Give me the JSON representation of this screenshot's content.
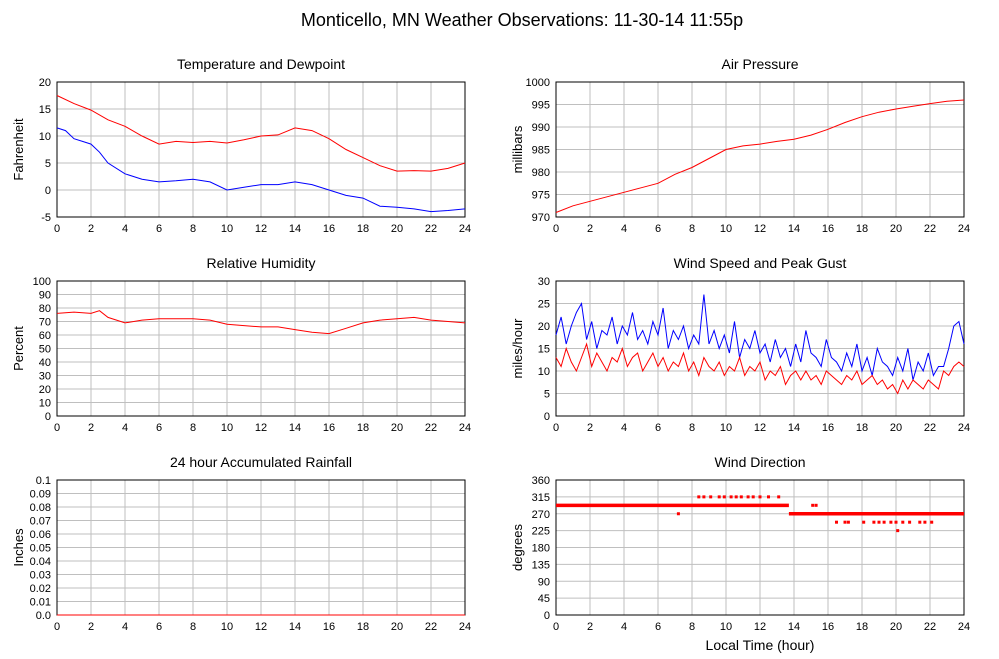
{
  "page": {
    "title": "Monticello, MN Weather Observations: 11-30-14 11:55p",
    "xlabel": "Local Time (hour)"
  },
  "colors": {
    "red": "#ff0000",
    "blue": "#0000ff",
    "grid": "#bfbfbf",
    "axis": "#000000"
  },
  "chart_data": [
    {
      "id": "temp",
      "type": "line",
      "title": "Temperature and Dewpoint",
      "xlabel": "",
      "ylabel": "Fahrenheit",
      "xlim": [
        0,
        24
      ],
      "ylim": [
        -5,
        20
      ],
      "xticks": [
        "0",
        "2",
        "4",
        "6",
        "8",
        "10",
        "12",
        "14",
        "16",
        "18",
        "20",
        "22",
        "24"
      ],
      "yticks": [
        "-5",
        "0",
        "5",
        "10",
        "15",
        "20"
      ],
      "grid": true,
      "series": [
        {
          "color": "red",
          "x": [
            0,
            1,
            2,
            3,
            4,
            5,
            6,
            7,
            8,
            9,
            10,
            11,
            12,
            13,
            14,
            15,
            16,
            17,
            18,
            19,
            20,
            21,
            22,
            23,
            24
          ],
          "values": [
            17.5,
            16,
            14.8,
            13,
            11.8,
            10,
            8.5,
            9,
            8.8,
            9,
            8.7,
            9.3,
            10,
            10.2,
            11.5,
            11,
            9.5,
            7.5,
            6,
            4.5,
            3.5,
            3.6,
            3.5,
            4,
            5
          ]
        },
        {
          "color": "blue",
          "x": [
            0,
            0.5,
            1,
            1.5,
            2,
            2.5,
            3,
            4,
            5,
            6,
            7,
            8,
            9,
            10,
            11,
            12,
            13,
            14,
            15,
            16,
            17,
            18,
            19,
            20,
            21,
            22,
            23,
            24
          ],
          "values": [
            11.5,
            11,
            9.5,
            9,
            8.5,
            7,
            5,
            3,
            2,
            1.5,
            1.7,
            2,
            1.5,
            0,
            0.5,
            1,
            1,
            1.5,
            1,
            0,
            -1,
            -1.5,
            -3,
            -3.2,
            -3.5,
            -4,
            -3.8,
            -3.5
          ]
        }
      ]
    },
    {
      "id": "pressure",
      "type": "line",
      "title": "Air Pressure",
      "xlabel": "",
      "ylabel": "millibars",
      "xlim": [
        0,
        24
      ],
      "ylim": [
        970,
        1000
      ],
      "xticks": [
        "0",
        "2",
        "4",
        "6",
        "8",
        "10",
        "12",
        "14",
        "16",
        "18",
        "20",
        "22",
        "24"
      ],
      "yticks": [
        "970",
        "975",
        "980",
        "985",
        "990",
        "995",
        "1000"
      ],
      "grid": true,
      "series": [
        {
          "color": "red",
          "x": [
            0,
            1,
            2,
            3,
            4,
            5,
            6,
            7,
            8,
            9,
            10,
            11,
            12,
            13,
            14,
            15,
            16,
            17,
            18,
            19,
            20,
            21,
            22,
            23,
            24
          ],
          "values": [
            971,
            972.5,
            973.5,
            974.5,
            975.5,
            976.5,
            977.5,
            979.5,
            981,
            983,
            985,
            985.8,
            986.2,
            986.8,
            987.3,
            988.2,
            989.5,
            991,
            992.3,
            993.3,
            994,
            994.6,
            995.2,
            995.7,
            996
          ]
        }
      ]
    },
    {
      "id": "humidity",
      "type": "line",
      "title": "Relative Humidity",
      "xlabel": "",
      "ylabel": "Percent",
      "xlim": [
        0,
        24
      ],
      "ylim": [
        0,
        100
      ],
      "xticks": [
        "0",
        "2",
        "4",
        "6",
        "8",
        "10",
        "12",
        "14",
        "16",
        "18",
        "20",
        "22",
        "24"
      ],
      "yticks": [
        "0",
        "10",
        "20",
        "30",
        "40",
        "50",
        "60",
        "70",
        "80",
        "90",
        "100"
      ],
      "grid": true,
      "series": [
        {
          "color": "red",
          "x": [
            0,
            1,
            2,
            2.5,
            3,
            4,
            5,
            6,
            7,
            8,
            9,
            10,
            11,
            12,
            13,
            14,
            15,
            16,
            17,
            18,
            19,
            20,
            21,
            22,
            23,
            24
          ],
          "values": [
            76,
            77,
            76,
            78,
            73,
            69,
            71,
            72,
            72,
            72,
            71,
            68,
            67,
            66,
            66,
            64,
            62,
            61,
            65,
            69,
            71,
            72,
            73,
            71,
            70,
            69
          ]
        }
      ]
    },
    {
      "id": "wind",
      "type": "line",
      "title": "Wind Speed and Peak Gust",
      "xlabel": "",
      "ylabel": "miles/hour",
      "xlim": [
        0,
        24
      ],
      "ylim": [
        0,
        30
      ],
      "xticks": [
        "0",
        "2",
        "4",
        "6",
        "8",
        "10",
        "12",
        "14",
        "16",
        "18",
        "20",
        "22",
        "24"
      ],
      "yticks": [
        "0",
        "5",
        "10",
        "15",
        "20",
        "25",
        "30"
      ],
      "grid": true,
      "series": [
        {
          "color": "blue",
          "x": [
            0,
            0.3,
            0.6,
            0.9,
            1.2,
            1.5,
            1.8,
            2.1,
            2.4,
            2.7,
            3,
            3.3,
            3.6,
            3.9,
            4.2,
            4.5,
            4.8,
            5.1,
            5.4,
            5.7,
            6,
            6.3,
            6.6,
            6.9,
            7.2,
            7.5,
            7.8,
            8.1,
            8.4,
            8.7,
            9,
            9.3,
            9.6,
            9.9,
            10.2,
            10.5,
            10.8,
            11.1,
            11.4,
            11.7,
            12,
            12.3,
            12.6,
            12.9,
            13.2,
            13.5,
            13.8,
            14.1,
            14.4,
            14.7,
            15,
            15.3,
            15.6,
            15.9,
            16.2,
            16.5,
            16.8,
            17.1,
            17.4,
            17.7,
            18,
            18.3,
            18.6,
            18.9,
            19.2,
            19.5,
            19.8,
            20.1,
            20.4,
            20.7,
            21,
            21.3,
            21.6,
            21.9,
            22.2,
            22.5,
            22.8,
            23.1,
            23.4,
            23.7,
            24
          ],
          "values": [
            18,
            22,
            16,
            20,
            23,
            25,
            17,
            21,
            15,
            19,
            18,
            22,
            16,
            20,
            18,
            23,
            17,
            19,
            16,
            21,
            18,
            24,
            15,
            19,
            17,
            20,
            15,
            18,
            16,
            27,
            16,
            19,
            15,
            18,
            14,
            21,
            13,
            17,
            15,
            19,
            14,
            16,
            12,
            17,
            13,
            15,
            11,
            16,
            12,
            19,
            14,
            13,
            11,
            17,
            13,
            12,
            10,
            14,
            11,
            16,
            10,
            13,
            9,
            15,
            12,
            11,
            9,
            13,
            10,
            15,
            8,
            12,
            10,
            14,
            9,
            11,
            11,
            15,
            20,
            21,
            16
          ]
        },
        {
          "color": "red",
          "x": [
            0,
            0.3,
            0.6,
            0.9,
            1.2,
            1.5,
            1.8,
            2.1,
            2.4,
            2.7,
            3,
            3.3,
            3.6,
            3.9,
            4.2,
            4.5,
            4.8,
            5.1,
            5.4,
            5.7,
            6,
            6.3,
            6.6,
            6.9,
            7.2,
            7.5,
            7.8,
            8.1,
            8.4,
            8.7,
            9,
            9.3,
            9.6,
            9.9,
            10.2,
            10.5,
            10.8,
            11.1,
            11.4,
            11.7,
            12,
            12.3,
            12.6,
            12.9,
            13.2,
            13.5,
            13.8,
            14.1,
            14.4,
            14.7,
            15,
            15.3,
            15.6,
            15.9,
            16.2,
            16.5,
            16.8,
            17.1,
            17.4,
            17.7,
            18,
            18.3,
            18.6,
            18.9,
            19.2,
            19.5,
            19.8,
            20.1,
            20.4,
            20.7,
            21,
            21.3,
            21.6,
            21.9,
            22.2,
            22.5,
            22.8,
            23.1,
            23.4,
            23.7,
            24
          ],
          "values": [
            13,
            11,
            15,
            12,
            10,
            13,
            16,
            11,
            14,
            12,
            10,
            13,
            12,
            15,
            11,
            13,
            14,
            10,
            12,
            14,
            11,
            13,
            10,
            12,
            11,
            14,
            10,
            12,
            9,
            13,
            11,
            10,
            12,
            9,
            11,
            10,
            13,
            9,
            11,
            10,
            12,
            8,
            10,
            9,
            11,
            7,
            9,
            10,
            8,
            10,
            8,
            9,
            7,
            10,
            9,
            8,
            7,
            9,
            8,
            10,
            7,
            8,
            9,
            7,
            8,
            6,
            7,
            5,
            8,
            6,
            8,
            7,
            6,
            8,
            7,
            6,
            10,
            9,
            11,
            12,
            11
          ]
        }
      ]
    },
    {
      "id": "rain",
      "type": "line",
      "title": "24 hour Accumulated Rainfall",
      "xlabel": "",
      "ylabel": "Inches",
      "xlim": [
        0,
        24
      ],
      "ylim": [
        0,
        0.1
      ],
      "xticks": [
        "0",
        "2",
        "4",
        "6",
        "8",
        "10",
        "12",
        "14",
        "16",
        "18",
        "20",
        "22",
        "24"
      ],
      "yticks": [
        "0.0",
        "0.01",
        "0.02",
        "0.03",
        "0.04",
        "0.05",
        "0.06",
        "0.07",
        "0.08",
        "0.09",
        "0.1"
      ],
      "grid": true,
      "series": [
        {
          "color": "red",
          "x": [
            0,
            24
          ],
          "values": [
            0,
            0
          ]
        }
      ]
    },
    {
      "id": "direction",
      "type": "scatter",
      "title": "Wind Direction",
      "xlabel": "Local Time (hour)",
      "ylabel": "degrees",
      "xlim": [
        0,
        24
      ],
      "ylim": [
        0,
        360
      ],
      "xticks": [
        "0",
        "2",
        "4",
        "6",
        "8",
        "10",
        "12",
        "14",
        "16",
        "18",
        "20",
        "22",
        "24"
      ],
      "yticks": [
        "0",
        "45",
        "90",
        "135",
        "180",
        "225",
        "270",
        "315",
        "360"
      ],
      "grid": true,
      "series": [
        {
          "color": "red",
          "style": "band",
          "x": [
            0,
            13.7
          ],
          "values": [
            292.5,
            292.5
          ]
        },
        {
          "color": "red",
          "style": "band",
          "x": [
            13.7,
            24
          ],
          "values": [
            270,
            270
          ]
        },
        {
          "color": "red",
          "style": "points",
          "x": [
            7.2,
            8.4,
            8.7,
            9.1,
            9.6,
            9.9,
            10.3,
            10.6,
            10.9,
            11.3,
            11.6,
            12,
            12.5,
            13.1,
            13.9,
            14.2,
            14.5,
            15.1,
            15.3,
            15.7,
            16.1,
            16.5,
            17,
            17.2,
            17.5,
            18.1,
            18.7,
            19,
            19.3,
            19.7,
            20,
            20.1,
            20.4,
            20.8,
            21.4,
            21.7,
            22.1
          ],
          "values": [
            270,
            315,
            315,
            315,
            315,
            315,
            315,
            315,
            315,
            315,
            315,
            315,
            315,
            315,
            270,
            270,
            270,
            292.5,
            292.5,
            270,
            270,
            247.5,
            247.5,
            247.5,
            270,
            247.5,
            247.5,
            247.5,
            247.5,
            247.5,
            247.5,
            225,
            247.5,
            247.5,
            247.5,
            247.5,
            247.5
          ]
        }
      ]
    }
  ]
}
